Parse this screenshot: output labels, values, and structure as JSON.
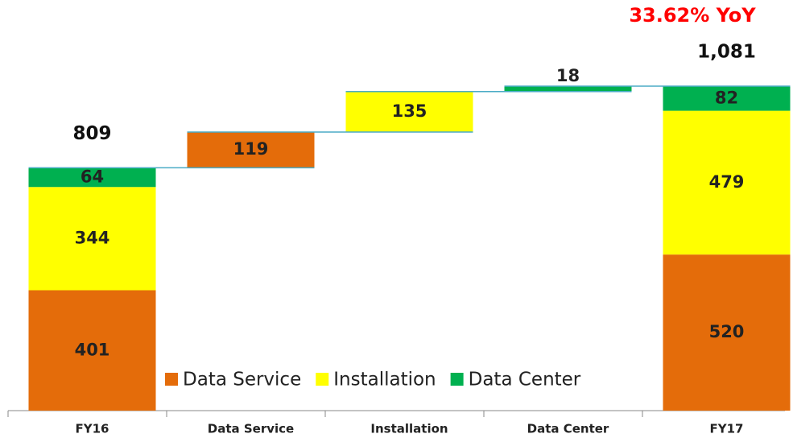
{
  "chart_data": {
    "type": "waterfall",
    "annotation": "33.62% YoY",
    "categories": [
      "FY16",
      "Data Service",
      "Installation",
      "Data Center",
      "FY17"
    ],
    "steps": [
      false,
      true,
      true,
      true,
      false
    ],
    "series": [
      {
        "name": "Data Service",
        "color": "#e46c0a",
        "values": [
          401,
          119,
          null,
          null,
          520
        ]
      },
      {
        "name": "Installation",
        "color": "#ffff00",
        "values": [
          344,
          null,
          135,
          null,
          479
        ]
      },
      {
        "name": "Data Center",
        "color": "#00b050",
        "values": [
          64,
          null,
          null,
          18,
          82
        ]
      }
    ],
    "totals": [
      809,
      null,
      null,
      null,
      1081
    ],
    "totals_labels": [
      "809",
      null,
      null,
      null,
      "1,081"
    ],
    "connector_color": "#4bacc6"
  }
}
